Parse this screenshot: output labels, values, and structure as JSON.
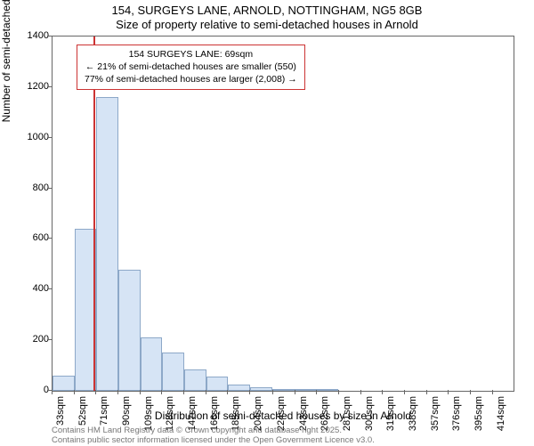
{
  "title_line1": "154, SURGEYS LANE, ARNOLD, NOTTINGHAM, NG5 8GB",
  "title_line2": "Size of property relative to semi-detached houses in Arnold",
  "ylabel": "Number of semi-detached properties",
  "xlabel": "Distribution of semi-detached houses by size in Arnold",
  "footer_line1": "Contains HM Land Registry data © Crown copyright and database right 2025.",
  "footer_line2": "Contains public sector information licensed under the Open Government Licence v3.0.",
  "chart": {
    "type": "histogram",
    "background_color": "#ffffff",
    "axis_border_color": "#666666",
    "bar_fill": "#d6e4f5",
    "bar_stroke": "#8da8c8",
    "ref_line_color": "#cc3333",
    "annot_border_color": "#cc3333",
    "ymin": 0,
    "ymax": 1400,
    "ytick_step": 200,
    "yticks": [
      0,
      200,
      400,
      600,
      800,
      1000,
      1200,
      1400
    ],
    "x_bin_start": 33,
    "x_bin_width": 19,
    "x_bin_count": 21,
    "xticks": [
      33,
      52,
      71,
      90,
      109,
      128,
      147,
      166,
      185,
      204,
      224,
      243,
      262,
      281,
      300,
      319,
      338,
      357,
      376,
      395,
      414
    ],
    "xtick_suffix": "sqm",
    "bar_values": [
      60,
      640,
      1160,
      480,
      210,
      150,
      85,
      55,
      25,
      15,
      8,
      4,
      3,
      0,
      0,
      0,
      0,
      0,
      0,
      0,
      0
    ],
    "ref_value_sqm": 69,
    "annot_lines": [
      "154 SURGEYS LANE: 69sqm",
      "← 21% of semi-detached houses are smaller (550)",
      "77% of semi-detached houses are larger (2,008) →"
    ],
    "title_fontsize": 13,
    "label_fontsize": 12,
    "tick_fontsize": 11,
    "annot_fontsize": 10.5,
    "footer_fontsize": 9.5,
    "footer_color": "#777777"
  }
}
